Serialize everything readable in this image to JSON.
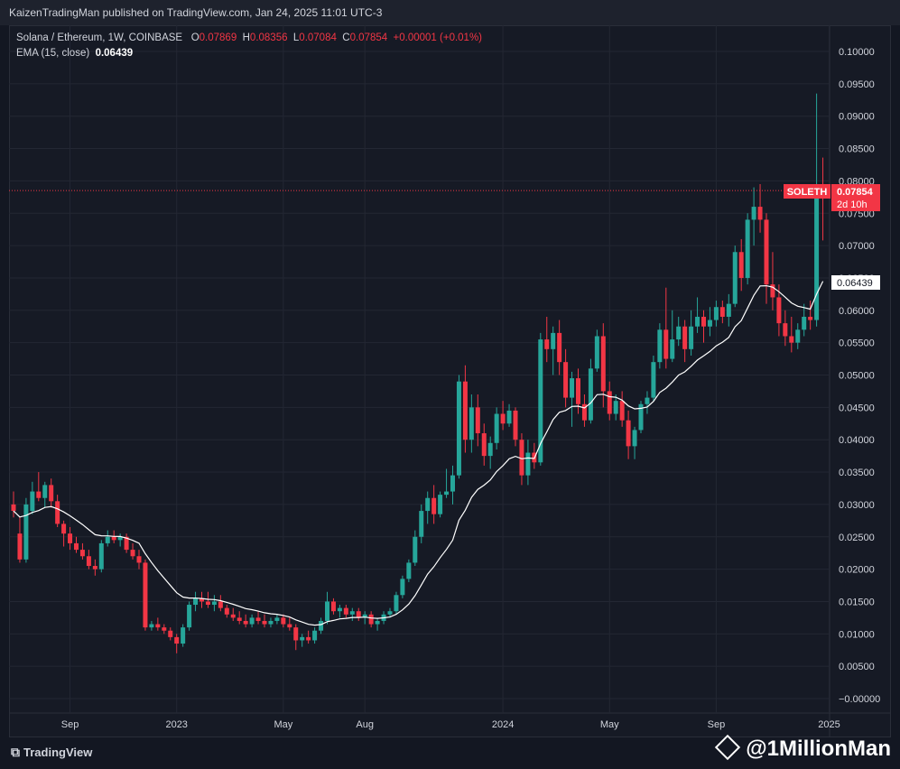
{
  "header": {
    "publisher": "KaizenTradingMan published on TradingView.com, Jan 24, 2025 11:01 UTC-3"
  },
  "legend": {
    "symbol": "Solana / Ethereum, 1W, COINBASE",
    "o_label": "O",
    "o_value": "0.07869",
    "h_label": "H",
    "h_value": "0.08356",
    "l_label": "L",
    "l_value": "0.07084",
    "c_label": "C",
    "c_value": "0.07854",
    "change": "+0.00001 (+0.01%)",
    "ema_label": "EMA (15, close)",
    "ema_value": "0.06439"
  },
  "price_tags": {
    "symbol": "SOLETH",
    "last_price": "0.07854",
    "countdown": "2d 10h",
    "ema_price": "0.06439"
  },
  "footer": {
    "brand": "TradingView",
    "watermark": "@1MillionMan"
  },
  "colors": {
    "up": "#26a69a",
    "down": "#f23645",
    "ema": "#ffffff",
    "grid": "#232733",
    "axis_text": "#d1d4dc"
  },
  "chart_data": {
    "type": "candlestick",
    "ylim": [
      -0.001,
      0.1
    ],
    "y_ticks": [
      "0.10000",
      "0.09500",
      "0.09000",
      "0.08500",
      "0.08000",
      "0.07500",
      "0.07000",
      "0.06500",
      "0.06000",
      "0.05500",
      "0.05000",
      "0.04500",
      "0.04000",
      "0.03500",
      "0.03000",
      "0.02500",
      "0.02000",
      "0.01500",
      "0.01000",
      "0.00500",
      "−0.00000"
    ],
    "x_labels": [
      {
        "label": "Sep",
        "week": 9
      },
      {
        "label": "2023",
        "week": 26
      },
      {
        "label": "May",
        "week": 43
      },
      {
        "label": "Aug",
        "week": 56
      },
      {
        "label": "2024",
        "week": 78
      },
      {
        "label": "May",
        "week": 95
      },
      {
        "label": "Sep",
        "week": 112
      },
      {
        "label": "2025",
        "week": 130
      }
    ],
    "ohlc": [
      [
        0.03,
        0.032,
        0.028,
        0.029
      ],
      [
        0.0255,
        0.028,
        0.021,
        0.0215
      ],
      [
        0.0215,
        0.031,
        0.021,
        0.03
      ],
      [
        0.029,
        0.0335,
        0.0285,
        0.032
      ],
      [
        0.032,
        0.035,
        0.0305,
        0.031
      ],
      [
        0.031,
        0.0335,
        0.0295,
        0.033
      ],
      [
        0.033,
        0.034,
        0.0295,
        0.0305
      ],
      [
        0.0305,
        0.0315,
        0.0265,
        0.027
      ],
      [
        0.027,
        0.0275,
        0.0235,
        0.0255
      ],
      [
        0.0255,
        0.0265,
        0.023,
        0.024
      ],
      [
        0.024,
        0.025,
        0.0225,
        0.023
      ],
      [
        0.023,
        0.024,
        0.0215,
        0.022
      ],
      [
        0.022,
        0.023,
        0.02,
        0.0205
      ],
      [
        0.0205,
        0.0215,
        0.019,
        0.02
      ],
      [
        0.02,
        0.0245,
        0.0195,
        0.024
      ],
      [
        0.024,
        0.026,
        0.0235,
        0.025
      ],
      [
        0.025,
        0.026,
        0.024,
        0.0245
      ],
      [
        0.0245,
        0.0255,
        0.0235,
        0.025
      ],
      [
        0.025,
        0.0255,
        0.0225,
        0.023
      ],
      [
        0.023,
        0.024,
        0.0215,
        0.022
      ],
      [
        0.022,
        0.023,
        0.02,
        0.021
      ],
      [
        0.021,
        0.0215,
        0.0105,
        0.011
      ],
      [
        0.011,
        0.012,
        0.0105,
        0.0115
      ],
      [
        0.0115,
        0.0125,
        0.0105,
        0.011
      ],
      [
        0.011,
        0.0115,
        0.01,
        0.0105
      ],
      [
        0.0105,
        0.011,
        0.009,
        0.0095
      ],
      [
        0.0095,
        0.01,
        0.007,
        0.0085
      ],
      [
        0.0085,
        0.0115,
        0.008,
        0.011
      ],
      [
        0.011,
        0.015,
        0.0105,
        0.0145
      ],
      [
        0.0145,
        0.0165,
        0.0135,
        0.0155
      ],
      [
        0.0155,
        0.0165,
        0.014,
        0.015
      ],
      [
        0.015,
        0.0165,
        0.014,
        0.0145
      ],
      [
        0.0145,
        0.016,
        0.0135,
        0.015
      ],
      [
        0.015,
        0.016,
        0.0135,
        0.014
      ],
      [
        0.014,
        0.0145,
        0.0125,
        0.013
      ],
      [
        0.013,
        0.014,
        0.012,
        0.0125
      ],
      [
        0.0125,
        0.0135,
        0.0115,
        0.012
      ],
      [
        0.012,
        0.013,
        0.011,
        0.0115
      ],
      [
        0.0115,
        0.013,
        0.011,
        0.0125
      ],
      [
        0.0125,
        0.0135,
        0.0115,
        0.012
      ],
      [
        0.012,
        0.013,
        0.011,
        0.0115
      ],
      [
        0.0115,
        0.0125,
        0.011,
        0.012
      ],
      [
        0.012,
        0.013,
        0.0115,
        0.0125
      ],
      [
        0.0125,
        0.013,
        0.011,
        0.0115
      ],
      [
        0.0115,
        0.0125,
        0.0105,
        0.011
      ],
      [
        0.011,
        0.0115,
        0.0075,
        0.009
      ],
      [
        0.009,
        0.01,
        0.008,
        0.0095
      ],
      [
        0.0095,
        0.0105,
        0.0085,
        0.009
      ],
      [
        0.009,
        0.011,
        0.0085,
        0.0105
      ],
      [
        0.0105,
        0.0125,
        0.01,
        0.012
      ],
      [
        0.012,
        0.0165,
        0.0115,
        0.015
      ],
      [
        0.015,
        0.0155,
        0.013,
        0.0135
      ],
      [
        0.0135,
        0.0145,
        0.0125,
        0.014
      ],
      [
        0.014,
        0.0145,
        0.0125,
        0.013
      ],
      [
        0.013,
        0.014,
        0.012,
        0.0135
      ],
      [
        0.0135,
        0.014,
        0.012,
        0.0125
      ],
      [
        0.0125,
        0.0135,
        0.0115,
        0.013
      ],
      [
        0.013,
        0.0135,
        0.011,
        0.0115
      ],
      [
        0.0115,
        0.0125,
        0.0105,
        0.012
      ],
      [
        0.012,
        0.0135,
        0.0115,
        0.013
      ],
      [
        0.013,
        0.014,
        0.0125,
        0.0135
      ],
      [
        0.0135,
        0.0165,
        0.013,
        0.016
      ],
      [
        0.016,
        0.019,
        0.0155,
        0.0185
      ],
      [
        0.0185,
        0.0215,
        0.018,
        0.021
      ],
      [
        0.021,
        0.026,
        0.0205,
        0.025
      ],
      [
        0.025,
        0.03,
        0.024,
        0.029
      ],
      [
        0.029,
        0.032,
        0.027,
        0.031
      ],
      [
        0.031,
        0.033,
        0.027,
        0.0285
      ],
      [
        0.0285,
        0.032,
        0.028,
        0.0315
      ],
      [
        0.0315,
        0.0355,
        0.031,
        0.032
      ],
      [
        0.032,
        0.036,
        0.03,
        0.0345
      ],
      [
        0.0345,
        0.05,
        0.034,
        0.049
      ],
      [
        0.049,
        0.0515,
        0.038,
        0.04
      ],
      [
        0.04,
        0.047,
        0.038,
        0.045
      ],
      [
        0.045,
        0.047,
        0.039,
        0.041
      ],
      [
        0.041,
        0.0425,
        0.036,
        0.0375
      ],
      [
        0.0375,
        0.0405,
        0.0355,
        0.0395
      ],
      [
        0.0395,
        0.045,
        0.0385,
        0.044
      ],
      [
        0.044,
        0.046,
        0.0415,
        0.0425
      ],
      [
        0.0425,
        0.0455,
        0.042,
        0.0445
      ],
      [
        0.0445,
        0.045,
        0.039,
        0.04
      ],
      [
        0.04,
        0.041,
        0.033,
        0.0345
      ],
      [
        0.0345,
        0.04,
        0.033,
        0.038
      ],
      [
        0.038,
        0.0395,
        0.0355,
        0.0365
      ],
      [
        0.0365,
        0.0565,
        0.036,
        0.0555
      ],
      [
        0.0555,
        0.059,
        0.052,
        0.054
      ],
      [
        0.054,
        0.0575,
        0.05,
        0.0565
      ],
      [
        0.0565,
        0.0585,
        0.05,
        0.052
      ],
      [
        0.052,
        0.054,
        0.045,
        0.0465
      ],
      [
        0.0465,
        0.0505,
        0.042,
        0.0495
      ],
      [
        0.0495,
        0.051,
        0.044,
        0.0455
      ],
      [
        0.0455,
        0.047,
        0.042,
        0.043
      ],
      [
        0.043,
        0.0525,
        0.0425,
        0.051
      ],
      [
        0.051,
        0.057,
        0.0505,
        0.056
      ],
      [
        0.056,
        0.058,
        0.045,
        0.0475
      ],
      [
        0.0475,
        0.049,
        0.043,
        0.044
      ],
      [
        0.044,
        0.047,
        0.043,
        0.046
      ],
      [
        0.046,
        0.0475,
        0.042,
        0.043
      ],
      [
        0.043,
        0.0445,
        0.037,
        0.039
      ],
      [
        0.039,
        0.042,
        0.037,
        0.0415
      ],
      [
        0.0415,
        0.046,
        0.041,
        0.0455
      ],
      [
        0.0455,
        0.0475,
        0.044,
        0.0465
      ],
      [
        0.0465,
        0.053,
        0.046,
        0.052
      ],
      [
        0.052,
        0.058,
        0.051,
        0.057
      ],
      [
        0.057,
        0.0635,
        0.051,
        0.0525
      ],
      [
        0.0525,
        0.06,
        0.052,
        0.0555
      ],
      [
        0.0555,
        0.059,
        0.0545,
        0.0575
      ],
      [
        0.0575,
        0.0585,
        0.052,
        0.054
      ],
      [
        0.054,
        0.06,
        0.053,
        0.0575
      ],
      [
        0.0575,
        0.062,
        0.0565,
        0.059
      ],
      [
        0.059,
        0.06,
        0.055,
        0.0575
      ],
      [
        0.0575,
        0.0605,
        0.056,
        0.0585
      ],
      [
        0.0585,
        0.0615,
        0.0575,
        0.0605
      ],
      [
        0.0605,
        0.0615,
        0.058,
        0.059
      ],
      [
        0.059,
        0.0625,
        0.0575,
        0.061
      ],
      [
        0.061,
        0.07,
        0.0605,
        0.069
      ],
      [
        0.069,
        0.071,
        0.063,
        0.065
      ],
      [
        0.065,
        0.075,
        0.064,
        0.074
      ],
      [
        0.074,
        0.079,
        0.07,
        0.076
      ],
      [
        0.076,
        0.0795,
        0.072,
        0.074
      ],
      [
        0.074,
        0.075,
        0.061,
        0.064
      ],
      [
        0.064,
        0.069,
        0.06,
        0.062
      ],
      [
        0.062,
        0.064,
        0.056,
        0.058
      ],
      [
        0.058,
        0.06,
        0.0545,
        0.056
      ],
      [
        0.056,
        0.059,
        0.0535,
        0.055
      ],
      [
        0.055,
        0.058,
        0.054,
        0.057
      ],
      [
        0.057,
        0.061,
        0.056,
        0.059
      ],
      [
        0.059,
        0.0615,
        0.057,
        0.0585
      ],
      [
        0.0585,
        0.0935,
        0.0575,
        0.0787
      ],
      [
        0.0787,
        0.0836,
        0.0708,
        0.0785
      ]
    ]
  }
}
